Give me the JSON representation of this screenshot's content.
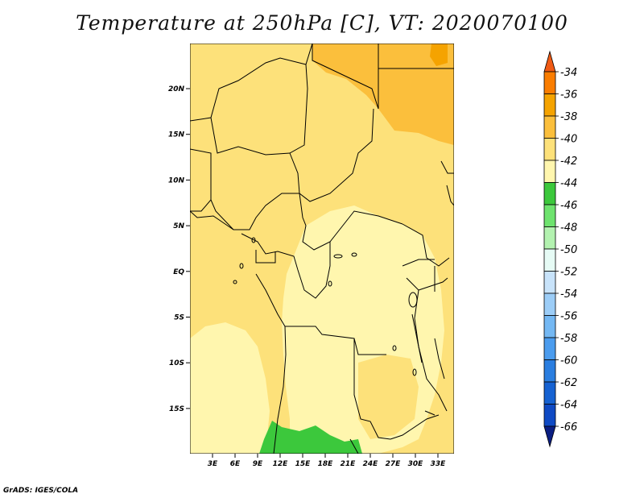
{
  "title": "Temperature at 250hPa [C], VT: 2020070100",
  "credit": "GrADS: IGES/COLA",
  "map": {
    "lat_ticks": [
      "20N",
      "15N",
      "10N",
      "5N",
      "EQ",
      "5S",
      "10S",
      "15S"
    ],
    "lon_ticks": [
      "3E",
      "6E",
      "9E",
      "12E",
      "15E",
      "18E",
      "21E",
      "24E",
      "27E",
      "30E",
      "33E"
    ]
  },
  "legend": {
    "labels": [
      "-34",
      "-36",
      "-38",
      "-40",
      "-42",
      "-44",
      "-46",
      "-48",
      "-50",
      "-52",
      "-54",
      "-56",
      "-58",
      "-60",
      "-62",
      "-64",
      "-66"
    ],
    "colors": [
      "#f05a14",
      "#fa7d00",
      "#f5a300",
      "#fbbf3c",
      "#fde17a",
      "#fff6ae",
      "#3cc83c",
      "#6ee36e",
      "#b3f2b0",
      "#e6fbf5",
      "#c8e3fa",
      "#9ccdf7",
      "#74b8f3",
      "#4b9cee",
      "#2a7ee0",
      "#1662d2",
      "#0f4ac4",
      "#0a1e82"
    ]
  }
}
